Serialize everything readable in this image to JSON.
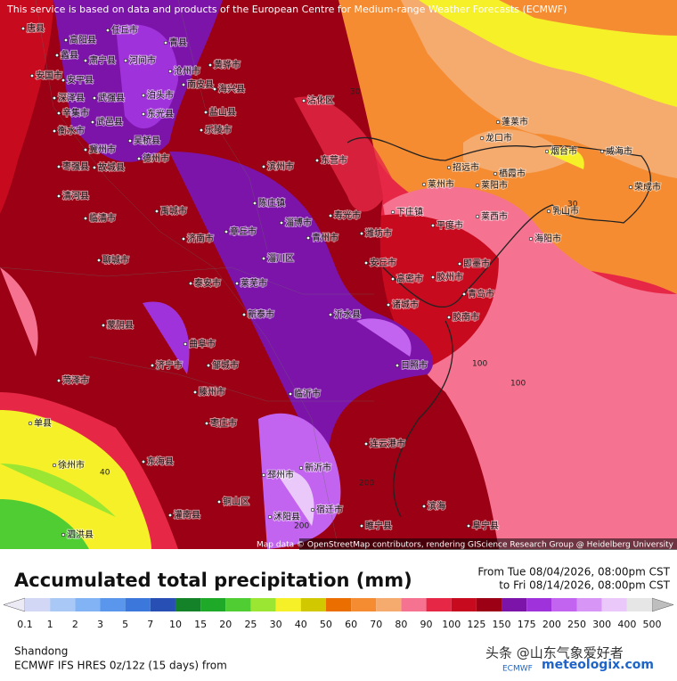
{
  "header": {
    "notice": "This service is based on data and products of the European Centre for Medium-range Weather Forecasts (ECMWF)"
  },
  "map": {
    "attribution": "Map data © OpenStreetMap contributors, rendering GIScience Research Group @ Heidelberg University",
    "cities": [
      "唐县",
      "高阳县",
      "任丘市",
      "青县",
      "沧州市",
      "黄骅市",
      "海兴县",
      "蠡县",
      "肃宁县",
      "河间市",
      "安国市",
      "安平县",
      "深泽县",
      "辛集市",
      "武强县",
      "泊头市",
      "南皮县",
      "盐山县",
      "衡水市",
      "武邑县",
      "东光县",
      "乐陵市",
      "冀州市",
      "吴桥县",
      "德州市",
      "枣强县",
      "故城县",
      "滨州市",
      "东营市",
      "沾化区",
      "清河县",
      "临清市",
      "禹城市",
      "陈庄镇",
      "淄博市",
      "寿光市",
      "潍坊市",
      "下庄镇",
      "平度市",
      "莱西市",
      "莱阳市",
      "海阳市",
      "乳山市",
      "招远市",
      "栖霞市",
      "蓬莱市",
      "龙口市",
      "烟台市",
      "威海市",
      "荣成市",
      "莱州市",
      "济南市",
      "章丘市",
      "聊城市",
      "泰安市",
      "莱芜市",
      "淄川区",
      "青州市",
      "安丘市",
      "高密市",
      "胶州市",
      "即墨市",
      "青岛市",
      "诸城市",
      "胶南市",
      "新泰市",
      "沂水县",
      "蒙阴县",
      "日照市",
      "济宁市",
      "曲阜市",
      "邹城市",
      "菏泽市",
      "滕州市",
      "临沂市",
      "枣庄市",
      "连云港市",
      "单县",
      "东海县",
      "徐州市",
      "铜山区",
      "邳州市",
      "新沂市",
      "宿迁市",
      "沭阳县",
      "灌南县",
      "滨海",
      "阜宁县",
      "睢宁县",
      "泗洪县"
    ],
    "contour_labels": [
      "30",
      "30",
      "100",
      "100",
      "200",
      "200",
      "40"
    ]
  },
  "title": "Accumulated total precipitation (mm)",
  "period": {
    "from": "From Tue 08/04/2026, 08:00pm CST",
    "to": "to Fri 08/14/2026, 08:00pm CST"
  },
  "legend": {
    "levels": [
      0.1,
      1,
      2,
      3,
      5,
      7,
      10,
      15,
      20,
      25,
      30,
      40,
      50,
      60,
      70,
      80,
      90,
      100,
      125,
      150,
      175,
      200,
      250,
      300,
      400,
      500
    ],
    "colors": [
      "#ecebf5",
      "#d2d7f5",
      "#aac8f5",
      "#82b4f5",
      "#5a96eb",
      "#3c78dc",
      "#2850b4",
      "#148228",
      "#1eaa28",
      "#50cd32",
      "#9be632",
      "#f5f028",
      "#d2c800",
      "#eb6e00",
      "#f58c32",
      "#f5aa6e",
      "#f57391",
      "#e62846",
      "#c80a1e",
      "#9b0014",
      "#7d14aa",
      "#a032dc",
      "#c364f0",
      "#d796f5",
      "#ebc8fa",
      "#e6e6e6",
      "#bebebe"
    ]
  },
  "footer": {
    "region": "Shandong",
    "model": "ECMWF IFS HRES 0z/12z (15 days) from",
    "watermark": "头条 @山东气象爱好者",
    "logo": "meteologix.com",
    "logo_sub": "ECMWF"
  }
}
